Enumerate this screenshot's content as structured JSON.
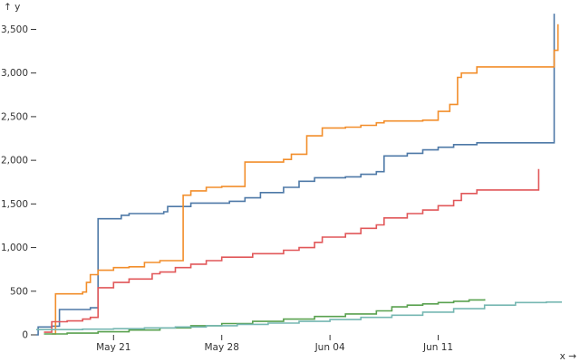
{
  "chart_data": {
    "type": "line",
    "x_axis": {
      "label": "x →",
      "min": "2023-05-16",
      "max": "2023-06-19",
      "ticks": [
        {
          "date": "2023-05-21",
          "label": "May 21"
        },
        {
          "date": "2023-05-28",
          "label": "May 28"
        },
        {
          "date": "2023-06-04",
          "label": "Jun 04"
        },
        {
          "date": "2023-06-11",
          "label": "Jun 11"
        }
      ]
    },
    "y_axis": {
      "label": "↑ y",
      "min": 0,
      "max": 3650,
      "ticks": [
        {
          "value": 0,
          "label": "0"
        },
        {
          "value": 500,
          "label": "500"
        },
        {
          "value": 1000,
          "label": "1,000"
        },
        {
          "value": 1500,
          "label": "1,500"
        },
        {
          "value": 2000,
          "label": "2,000"
        },
        {
          "value": 2500,
          "label": "2,500"
        },
        {
          "value": 3000,
          "label": "3,000"
        },
        {
          "value": 3500,
          "label": "3,500"
        }
      ]
    },
    "grid": false,
    "step": "after",
    "series": [
      {
        "color": "#4e79a7",
        "points": [
          [
            "2023-05-16T00:00",
            0
          ],
          [
            "2023-05-16T03:00",
            90
          ],
          [
            "2023-05-17T00:00",
            100
          ],
          [
            "2023-05-17T12:00",
            290
          ],
          [
            "2023-05-19T12:00",
            310
          ],
          [
            "2023-05-20T00:00",
            1330
          ],
          [
            "2023-05-21T12:00",
            1370
          ],
          [
            "2023-05-22T00:00",
            1390
          ],
          [
            "2023-05-24T06:00",
            1410
          ],
          [
            "2023-05-24T12:00",
            1470
          ],
          [
            "2023-05-26T00:00",
            1510
          ],
          [
            "2023-05-28T12:00",
            1530
          ],
          [
            "2023-05-29T12:00",
            1570
          ],
          [
            "2023-05-30T12:00",
            1630
          ],
          [
            "2023-06-01T00:00",
            1690
          ],
          [
            "2023-06-02T00:00",
            1760
          ],
          [
            "2023-06-03T00:00",
            1800
          ],
          [
            "2023-06-05T00:00",
            1810
          ],
          [
            "2023-06-06T00:00",
            1840
          ],
          [
            "2023-06-07T00:00",
            1870
          ],
          [
            "2023-06-07T12:00",
            2050
          ],
          [
            "2023-06-09T00:00",
            2080
          ],
          [
            "2023-06-10T00:00",
            2120
          ],
          [
            "2023-06-11T00:00",
            2150
          ],
          [
            "2023-06-12T00:00",
            2180
          ],
          [
            "2023-06-13T12:00",
            2200
          ],
          [
            "2023-06-18T12:00",
            3680
          ]
        ]
      },
      {
        "color": "#f28e2b",
        "points": [
          [
            "2023-05-17T00:00",
            10
          ],
          [
            "2023-05-17T06:00",
            470
          ],
          [
            "2023-05-19T00:00",
            490
          ],
          [
            "2023-05-19T06:00",
            600
          ],
          [
            "2023-05-19T12:00",
            690
          ],
          [
            "2023-05-20T00:00",
            740
          ],
          [
            "2023-05-21T00:00",
            770
          ],
          [
            "2023-05-22T00:00",
            780
          ],
          [
            "2023-05-23T00:00",
            830
          ],
          [
            "2023-05-24T00:00",
            850
          ],
          [
            "2023-05-25T12:00",
            1600
          ],
          [
            "2023-05-26T00:00",
            1650
          ],
          [
            "2023-05-27T00:00",
            1690
          ],
          [
            "2023-05-28T00:00",
            1700
          ],
          [
            "2023-05-29T12:00",
            1980
          ],
          [
            "2023-06-01T00:00",
            2010
          ],
          [
            "2023-06-01T12:00",
            2070
          ],
          [
            "2023-06-02T12:00",
            2280
          ],
          [
            "2023-06-03T12:00",
            2370
          ],
          [
            "2023-06-05T00:00",
            2380
          ],
          [
            "2023-06-06T00:00",
            2400
          ],
          [
            "2023-06-07T00:00",
            2430
          ],
          [
            "2023-06-07T12:00",
            2450
          ],
          [
            "2023-06-10T00:00",
            2460
          ],
          [
            "2023-06-11T00:00",
            2560
          ],
          [
            "2023-06-11T18:00",
            2640
          ],
          [
            "2023-06-12T06:00",
            2950
          ],
          [
            "2023-06-12T12:00",
            3000
          ],
          [
            "2023-06-13T12:00",
            3070
          ],
          [
            "2023-06-18T12:00",
            3260
          ],
          [
            "2023-06-18T18:00",
            3560
          ]
        ]
      },
      {
        "color": "#e15759",
        "points": [
          [
            "2023-05-16T12:00",
            30
          ],
          [
            "2023-05-17T00:00",
            150
          ],
          [
            "2023-05-18T00:00",
            160
          ],
          [
            "2023-05-19T00:00",
            180
          ],
          [
            "2023-05-19T12:00",
            200
          ],
          [
            "2023-05-20T00:00",
            540
          ],
          [
            "2023-05-21T00:00",
            600
          ],
          [
            "2023-05-22T00:00",
            640
          ],
          [
            "2023-05-23T12:00",
            700
          ],
          [
            "2023-05-24T00:00",
            720
          ],
          [
            "2023-05-25T00:00",
            770
          ],
          [
            "2023-05-26T00:00",
            810
          ],
          [
            "2023-05-27T00:00",
            850
          ],
          [
            "2023-05-28T00:00",
            890
          ],
          [
            "2023-05-30T00:00",
            930
          ],
          [
            "2023-06-01T00:00",
            970
          ],
          [
            "2023-06-02T00:00",
            1000
          ],
          [
            "2023-06-03T00:00",
            1060
          ],
          [
            "2023-06-03T12:00",
            1120
          ],
          [
            "2023-06-05T00:00",
            1160
          ],
          [
            "2023-06-06T00:00",
            1220
          ],
          [
            "2023-06-07T00:00",
            1260
          ],
          [
            "2023-06-07T12:00",
            1340
          ],
          [
            "2023-06-09T00:00",
            1390
          ],
          [
            "2023-06-10T00:00",
            1430
          ],
          [
            "2023-06-11T00:00",
            1480
          ],
          [
            "2023-06-12T00:00",
            1540
          ],
          [
            "2023-06-12T12:00",
            1620
          ],
          [
            "2023-06-13T12:00",
            1660
          ],
          [
            "2023-06-17T12:00",
            1900
          ]
        ]
      },
      {
        "color": "#59a14f",
        "points": [
          [
            "2023-05-16T12:00",
            10
          ],
          [
            "2023-05-18T00:00",
            20
          ],
          [
            "2023-05-20T00:00",
            35
          ],
          [
            "2023-05-22T00:00",
            55
          ],
          [
            "2023-05-24T00:00",
            80
          ],
          [
            "2023-05-26T00:00",
            105
          ],
          [
            "2023-05-28T00:00",
            130
          ],
          [
            "2023-05-30T00:00",
            155
          ],
          [
            "2023-06-01T00:00",
            180
          ],
          [
            "2023-06-03T00:00",
            210
          ],
          [
            "2023-06-05T00:00",
            240
          ],
          [
            "2023-06-07T00:00",
            275
          ],
          [
            "2023-06-08T00:00",
            320
          ],
          [
            "2023-06-09T00:00",
            340
          ],
          [
            "2023-06-10T00:00",
            355
          ],
          [
            "2023-06-11T00:00",
            370
          ],
          [
            "2023-06-12T00:00",
            385
          ],
          [
            "2023-06-13T00:00",
            400
          ],
          [
            "2023-06-14T00:00",
            410
          ]
        ]
      },
      {
        "color": "#76b7b2",
        "points": [
          [
            "2023-05-16T00:00",
            60
          ],
          [
            "2023-05-19T00:00",
            65
          ],
          [
            "2023-05-21T00:00",
            70
          ],
          [
            "2023-05-23T00:00",
            80
          ],
          [
            "2023-05-25T00:00",
            90
          ],
          [
            "2023-05-27T00:00",
            105
          ],
          [
            "2023-05-29T00:00",
            120
          ],
          [
            "2023-05-31T00:00",
            135
          ],
          [
            "2023-06-02T00:00",
            155
          ],
          [
            "2023-06-04T00:00",
            175
          ],
          [
            "2023-06-06T00:00",
            200
          ],
          [
            "2023-06-08T00:00",
            225
          ],
          [
            "2023-06-10T00:00",
            260
          ],
          [
            "2023-06-12T00:00",
            300
          ],
          [
            "2023-06-14T00:00",
            340
          ],
          [
            "2023-06-16T00:00",
            370
          ],
          [
            "2023-06-18T00:00",
            375
          ],
          [
            "2023-06-19T00:00",
            375
          ]
        ]
      }
    ]
  }
}
